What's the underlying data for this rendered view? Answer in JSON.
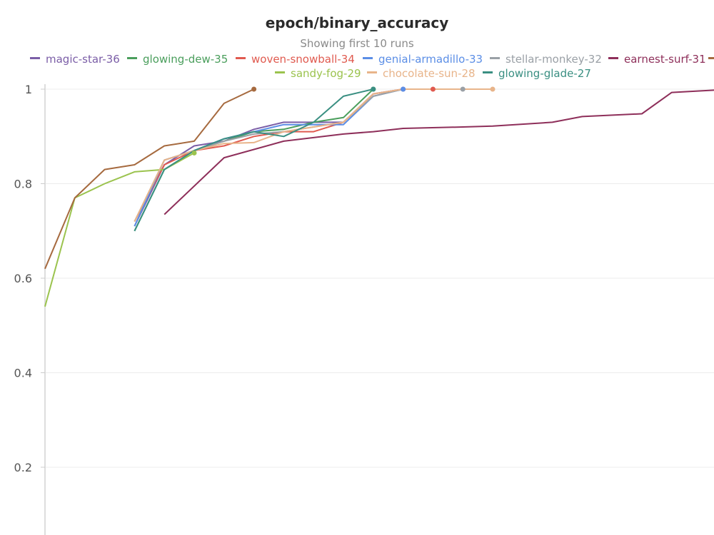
{
  "chart_data": {
    "type": "line",
    "title": "epoch/binary_accuracy",
    "subtitle": "Showing first 10 runs",
    "xlabel": "",
    "ylabel": "",
    "ylim": [
      0,
      1
    ],
    "yticks": [
      0.2,
      0.4,
      0.6,
      0.8,
      1
    ],
    "ytick_labels": [
      "0.2",
      "0.4",
      "0.6",
      "0.8",
      "1"
    ],
    "grid": true,
    "legend_position": "top",
    "series": [
      {
        "name": "magic-star-36",
        "color": "#7b5ea7",
        "x": [
          4,
          5,
          6,
          7,
          8,
          9,
          10,
          11,
          12,
          13
        ],
        "y": [
          0.71,
          0.84,
          0.88,
          0.89,
          0.915,
          0.93,
          0.93,
          0.93,
          0.99,
          1.0
        ]
      },
      {
        "name": "glowing-dew-35",
        "color": "#4a9e5c",
        "x": [
          4,
          5,
          6,
          7,
          8,
          9,
          10,
          11,
          12
        ],
        "y": [
          0.7,
          0.83,
          0.87,
          0.89,
          0.91,
          0.915,
          0.93,
          0.94,
          1.0
        ]
      },
      {
        "name": "woven-snowball-34",
        "color": "#e05a4f",
        "x": [
          4,
          5,
          6,
          7,
          8,
          9,
          10,
          11,
          12,
          13,
          14
        ],
        "y": [
          0.72,
          0.84,
          0.87,
          0.88,
          0.9,
          0.91,
          0.91,
          0.93,
          0.99,
          1.0,
          1.0
        ]
      },
      {
        "name": "genial-armadillo-33",
        "color": "#5b8ee6",
        "x": [
          4,
          5,
          6,
          7,
          8,
          9,
          10,
          11,
          12,
          13
        ],
        "y": [
          0.71,
          0.85,
          0.87,
          0.895,
          0.91,
          0.925,
          0.925,
          0.925,
          0.985,
          1.0
        ]
      },
      {
        "name": "stellar-monkey-32",
        "color": "#9aa0a6",
        "x": [
          4,
          5,
          6,
          7,
          8,
          9,
          10,
          11,
          12,
          13,
          14,
          15
        ],
        "y": [
          0.72,
          0.85,
          0.87,
          0.89,
          0.905,
          0.91,
          0.92,
          0.93,
          0.985,
          1.0,
          1.0,
          1.0
        ]
      },
      {
        "name": "earnest-surf-31",
        "color": "#8e2f5a",
        "x": [
          5,
          7,
          9,
          11,
          12,
          13,
          15,
          16,
          18,
          19,
          21,
          22,
          24,
          25,
          26
        ],
        "y": [
          0.735,
          0.855,
          0.89,
          0.905,
          0.91,
          0.917,
          0.92,
          0.922,
          0.93,
          0.942,
          0.948,
          0.993,
          1.0,
          1.0,
          1.0
        ]
      },
      {
        "name": "sandy-fog-29",
        "color": "#9bc34e",
        "x": [
          1,
          2,
          3,
          4,
          5,
          6
        ],
        "y": [
          0.54,
          0.77,
          0.8,
          0.825,
          0.83,
          0.865
        ]
      },
      {
        "name": "chocolate-sun-28",
        "color": "#e8b48a",
        "x": [
          4,
          5,
          6,
          7,
          8,
          9,
          10,
          11,
          12,
          13,
          14,
          15,
          16
        ],
        "y": [
          0.72,
          0.85,
          0.87,
          0.885,
          0.887,
          0.91,
          0.92,
          0.93,
          0.99,
          1.0,
          1.0,
          1.0,
          1.0
        ]
      },
      {
        "name": "glowing-glade-27",
        "color": "#3a8f82",
        "x": [
          4,
          5,
          6,
          7,
          8,
          9,
          10,
          11,
          12
        ],
        "y": [
          0.7,
          0.83,
          0.87,
          0.895,
          0.91,
          0.9,
          0.93,
          0.985,
          1.0
        ]
      },
      {
        "name": "",
        "color": "#a66a3f",
        "x": [
          1,
          2,
          3,
          4,
          5,
          6,
          7,
          8
        ],
        "y": [
          0.62,
          0.77,
          0.83,
          0.84,
          0.88,
          0.89,
          0.97,
          1.0
        ]
      }
    ]
  }
}
